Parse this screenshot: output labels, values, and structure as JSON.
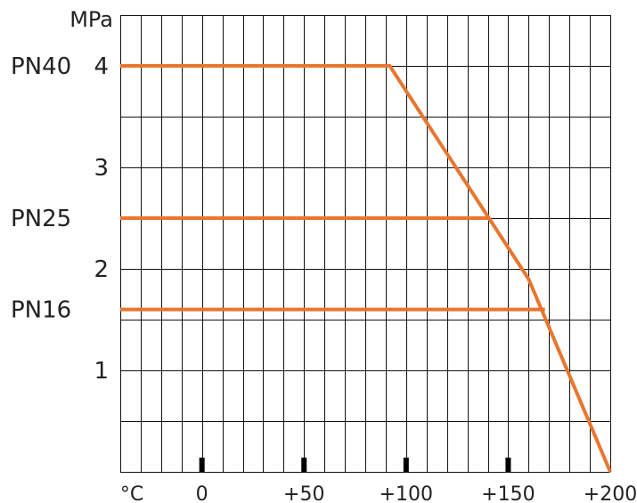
{
  "chart_data": {
    "type": "line",
    "title": "",
    "xlabel": "°C",
    "ylabel": "MPa",
    "x_tick_labels": [
      "0",
      "+50",
      "+100",
      "+150",
      "+200"
    ],
    "x_ticks": [
      0,
      50,
      100,
      150,
      200
    ],
    "y_tick_labels": [
      "1",
      "2",
      "3",
      "4"
    ],
    "y_ticks": [
      1,
      2,
      3,
      4
    ],
    "xlim": [
      -40,
      200
    ],
    "ylim": [
      0,
      4.5
    ],
    "grid": true,
    "line_color": "#e87630",
    "series": [
      {
        "name": "PN40",
        "x": [
          -40,
          92,
          160,
          200
        ],
        "y": [
          4.0,
          4.0,
          1.9,
          0.0
        ]
      },
      {
        "name": "PN25",
        "x": [
          -40,
          141
        ],
        "y": [
          2.5,
          2.5
        ]
      },
      {
        "name": "PN16",
        "x": [
          -40,
          168
        ],
        "y": [
          1.6,
          1.6
        ]
      }
    ]
  }
}
